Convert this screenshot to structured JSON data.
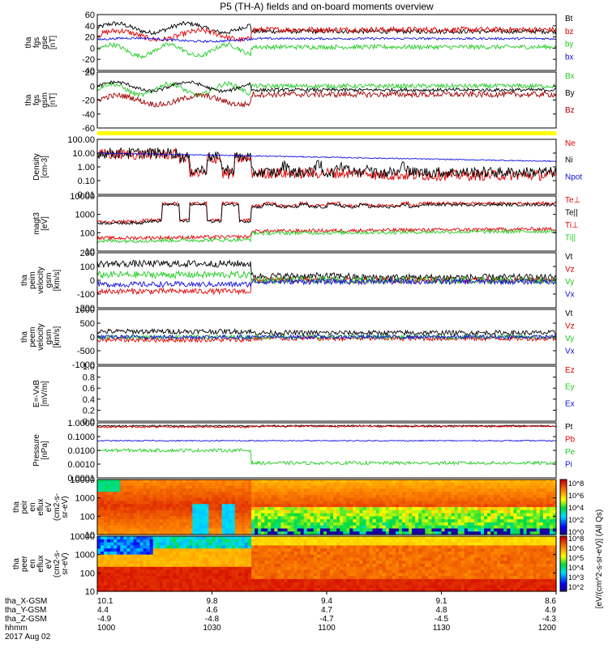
{
  "title": "P5 (TH-A) fields and on-board moments overview",
  "colors": {
    "black": "#000000",
    "red": "#e00000",
    "green": "#22cc22",
    "blue": "#1010e0",
    "yellow": "#ffff00",
    "darkred": "#a00000"
  },
  "chart_data": [
    {
      "type": "line",
      "panel": "fgs-gse",
      "ylabel": [
        "tha",
        "fgs",
        "gse",
        "[nT]"
      ],
      "yticks": [
        "60",
        "40",
        "20",
        "0",
        "-20",
        "-40"
      ],
      "ylim": [
        -40,
        60
      ],
      "series": [
        {
          "name": "Bt",
          "color": "#000000",
          "shape": "bt",
          "level": 30,
          "noise": 4
        },
        {
          "name": "bz",
          "color": "#e00000",
          "shape": "bz",
          "level": 28,
          "noise": 5
        },
        {
          "name": "by",
          "color": "#22cc22",
          "shape": "by",
          "level": 2,
          "noise": 4
        },
        {
          "name": "bx",
          "color": "#1010e0",
          "shape": "bx",
          "level": 15,
          "noise": 2
        }
      ]
    },
    {
      "type": "line",
      "panel": "fgs-gsm",
      "ylabel": [
        "tha",
        "fgs",
        "gsm",
        "[nT]"
      ],
      "yticks": [
        "20",
        "0",
        "-20",
        "-40",
        "-60"
      ],
      "ylim": [
        -70,
        30
      ],
      "series": [
        {
          "name": "Bx",
          "color": "#22cc22",
          "shape": "by",
          "level": 5,
          "noise": 4
        },
        {
          "name": "By",
          "color": "#000000",
          "shape": "bt",
          "level": -2,
          "noise": 3
        },
        {
          "name": "Bz",
          "color": "#a00000",
          "shape": "bz",
          "level": -15,
          "noise": 5
        }
      ]
    },
    {
      "type": "line",
      "panel": "density",
      "log": true,
      "ylabel": [
        "Density",
        "[cm-3]"
      ],
      "yticks": [
        "100.00",
        "10.00",
        "1.00",
        "0.10",
        "0.01"
      ],
      "ylim": [
        0.01,
        100
      ],
      "series": [
        {
          "name": "Ne",
          "color": "#e00000",
          "shape": "dense_e",
          "noise": 0.2
        },
        {
          "name": "Ni",
          "color": "#000000",
          "shape": "dense_i",
          "noise": 0.2
        },
        {
          "name": "Npot",
          "color": "#1010e0",
          "shape": "npot",
          "noise": 0.02
        }
      ]
    },
    {
      "type": "line",
      "panel": "temperature",
      "log": true,
      "ylabel": [
        "magt3",
        "[eV]"
      ],
      "yticks": [
        "10000",
        "1000",
        "100",
        "10"
      ],
      "ylim": [
        10,
        10000
      ],
      "series": [
        {
          "name": "Te⊥",
          "color": "#e00000",
          "shape": "te",
          "noise": 0.04
        },
        {
          "name": "Te||",
          "color": "#000000",
          "shape": "te2",
          "noise": 0.04
        },
        {
          "name": "Ti⊥",
          "color": "#e00000",
          "shape": "ti",
          "noise": 0.05
        },
        {
          "name": "Ti||",
          "color": "#22cc22",
          "shape": "ti2",
          "noise": 0.05
        }
      ]
    },
    {
      "type": "line",
      "panel": "peim-velocity",
      "ylabel": [
        "tha",
        "peim",
        "velocity",
        "gsm",
        "[km/s]"
      ],
      "yticks": [
        "200",
        "100",
        "0",
        "-100",
        "-200"
      ],
      "ylim": [
        -200,
        200
      ],
      "series": [
        {
          "name": "Vt",
          "color": "#000000",
          "shape": "vt",
          "noise": 25
        },
        {
          "name": "Vz",
          "color": "#e00000",
          "shape": "vz",
          "noise": 20
        },
        {
          "name": "Vy",
          "color": "#22cc22",
          "shape": "vy",
          "noise": 25
        },
        {
          "name": "Vx",
          "color": "#1010e0",
          "shape": "vx",
          "noise": 20
        }
      ]
    },
    {
      "type": "line",
      "panel": "peem-velocity",
      "ylabel": [
        "tha",
        "peem",
        "velocity",
        "gsm",
        "[km/s]"
      ],
      "yticks": [
        "1000",
        "500",
        "0",
        "-500",
        "-1000"
      ],
      "ylim": [
        -1000,
        1000
      ],
      "series": [
        {
          "name": "Vt",
          "color": "#000000",
          "shape": "evt",
          "noise": 90
        },
        {
          "name": "Vz",
          "color": "#e00000",
          "shape": "evz",
          "noise": 90
        },
        {
          "name": "Vy",
          "color": "#22cc22",
          "shape": "evy",
          "noise": 80
        },
        {
          "name": "Vx",
          "color": "#1010e0",
          "shape": "evx",
          "noise": 70
        }
      ]
    },
    {
      "type": "line",
      "panel": "efield",
      "ylabel": [
        "E=-VxB",
        "[mV/m]"
      ],
      "yticks": [
        "1.0",
        "0.8",
        "0.6",
        "0.4",
        "0.2",
        "0.0"
      ],
      "ylim": [
        0,
        1
      ],
      "series": [
        {
          "name": "Ez",
          "color": "#e00000"
        },
        {
          "name": "Ey",
          "color": "#22cc22"
        },
        {
          "name": "Ex",
          "color": "#1010e0"
        }
      ]
    },
    {
      "type": "line",
      "panel": "pressure",
      "log": true,
      "ylabel": [
        "Pressure",
        "[nPa]"
      ],
      "yticks": [
        "1.0000",
        "0.1000",
        "0.0100",
        "0.0010",
        "0.0001"
      ],
      "ylim": [
        0.0001,
        1
      ],
      "series": [
        {
          "name": "Pt",
          "color": "#000000",
          "shape": "pt",
          "noise": 0.03
        },
        {
          "name": "Pb",
          "color": "#e00000",
          "shape": "pb",
          "noise": 0.03
        },
        {
          "name": "Pe",
          "color": "#22cc22",
          "shape": "pe",
          "noise": 0.06
        },
        {
          "name": "Pi",
          "color": "#1010e0",
          "shape": "pi",
          "noise": 0.02
        }
      ]
    },
    {
      "type": "heatmap",
      "panel": "peir-spectrogram",
      "ylabel": [
        "tha",
        "peir",
        "en",
        "eflux",
        "eV",
        "(cm2-s-",
        "sr-eV)"
      ],
      "yticks": [
        "10000",
        "1000",
        "100",
        "10"
      ],
      "log": true,
      "ylim": [
        5,
        25000
      ],
      "kind": "ion"
    },
    {
      "type": "heatmap",
      "panel": "peer-spectrogram",
      "ylabel": [
        "tha",
        "peer",
        "en",
        "eflux",
        "eV",
        "(cm2-s-",
        "sr-eV)"
      ],
      "yticks": [
        "10000",
        "1000",
        "100",
        "10"
      ],
      "log": true,
      "ylim": [
        5,
        25000
      ],
      "kind": "electron"
    }
  ],
  "colorbar": {
    "label": "[eV/(cm^2-s-sr-eV)] (All Qs)",
    "ion_ticks": [
      "10^8",
      "10^6",
      "10^4",
      "10^2",
      "10^0"
    ],
    "electron_ticks": [
      "10^8",
      "10^6",
      "10^5",
      "10^4",
      "10^3",
      "10^2"
    ]
  },
  "time_axis": {
    "row_labels": [
      "tha_X-GSM",
      "tha_Y-GSM",
      "tha_Z-GSM",
      "hhmm",
      "2017 Aug 02"
    ],
    "columns": [
      {
        "x": "10.1",
        "y": "4.4",
        "z": "-4.9",
        "hhmm": "1000"
      },
      {
        "x": "9.8",
        "y": "4.6",
        "z": "-4.8",
        "hhmm": "1030"
      },
      {
        "x": "9.4",
        "y": "4.7",
        "z": "-4.7",
        "hhmm": "1100"
      },
      {
        "x": "9.1",
        "y": "4.8",
        "z": "-4.5",
        "hhmm": "1130"
      },
      {
        "x": "8.6",
        "y": "4.9",
        "z": "-4.3",
        "hhmm": "1200"
      }
    ]
  }
}
